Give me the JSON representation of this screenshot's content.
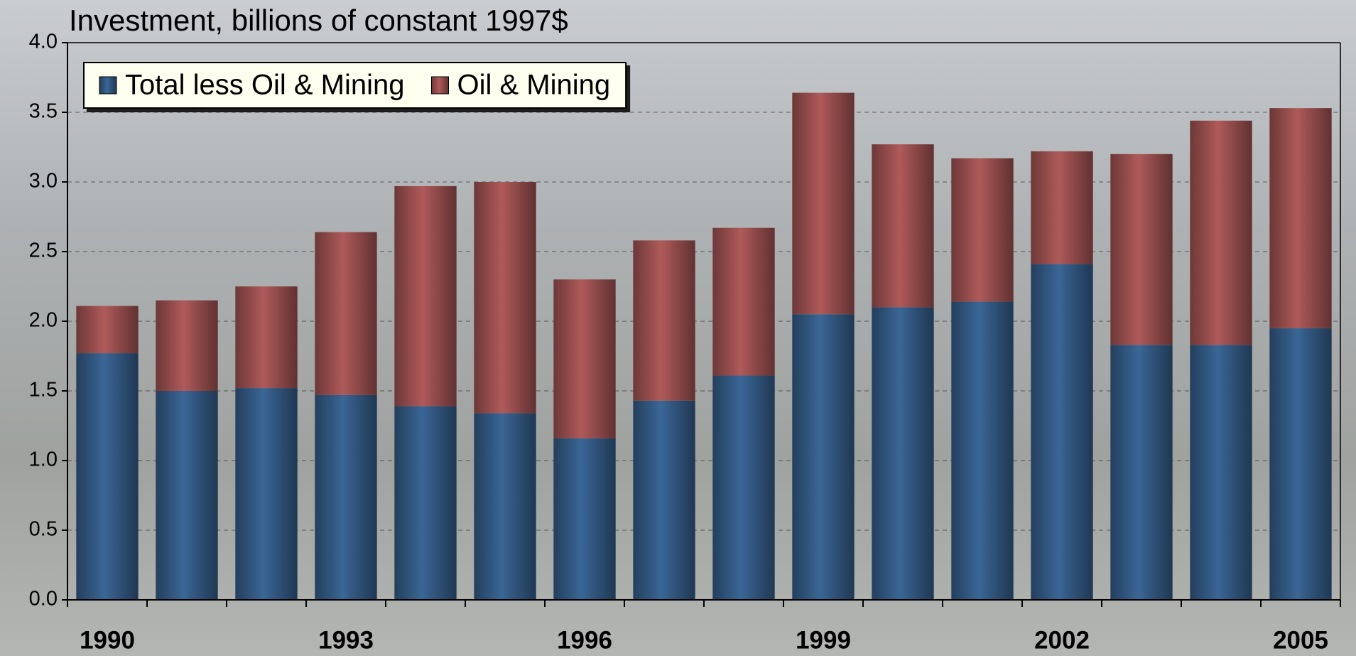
{
  "chart_data": {
    "type": "stacked_bar",
    "title": "Investment, billions of constant 1997$",
    "categories": [
      "1990",
      null,
      null,
      "1993",
      null,
      null,
      "1996",
      null,
      null,
      "1999",
      null,
      null,
      "2002",
      null,
      null,
      "2005"
    ],
    "series": [
      {
        "name": "Total less Oil & Mining",
        "color": "#3a6696",
        "values": [
          1.77,
          1.5,
          1.52,
          1.47,
          1.39,
          1.34,
          1.16,
          1.43,
          1.61,
          2.05,
          2.1,
          2.14,
          2.41,
          1.83,
          1.83,
          1.95
        ]
      },
      {
        "name": "Oil & Mining",
        "color": "#b05a5a",
        "values": [
          0.34,
          0.65,
          0.73,
          1.17,
          1.58,
          1.66,
          1.14,
          1.15,
          1.06,
          1.59,
          1.17,
          1.03,
          0.81,
          1.37,
          1.61,
          1.58
        ]
      }
    ],
    "ylim": [
      0,
      4
    ],
    "yticks": [
      {
        "value": 0,
        "label": "0.0"
      },
      {
        "value": 0.5,
        "label": "0.5"
      },
      {
        "value": 1,
        "label": "1.0"
      },
      {
        "value": 1.5,
        "label": "1.5"
      },
      {
        "value": 2,
        "label": "2.0"
      },
      {
        "value": 2.5,
        "label": "2.5"
      },
      {
        "value": 3,
        "label": "3.0"
      },
      {
        "value": 3.5,
        "label": "3.5"
      },
      {
        "value": 4,
        "label": "4.0"
      }
    ],
    "grid": true,
    "legend": "top-left"
  }
}
